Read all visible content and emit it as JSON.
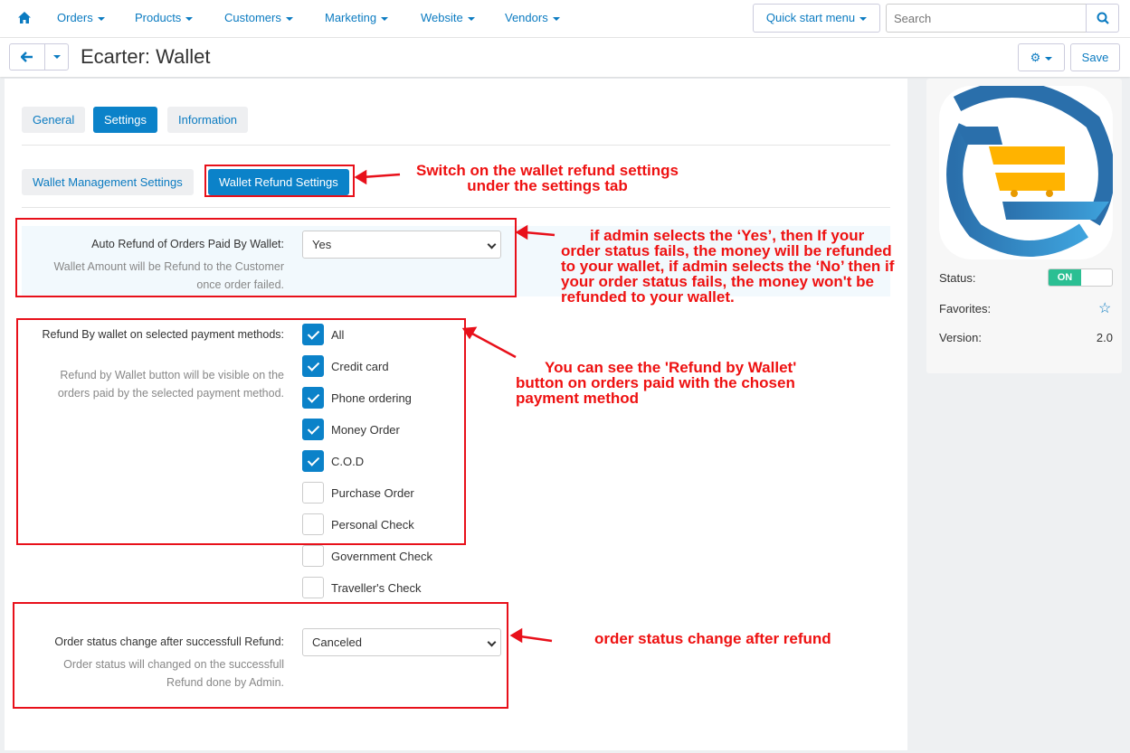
{
  "nav": {
    "items": [
      "Orders",
      "Products",
      "Customers",
      "Marketing",
      "Website",
      "Vendors"
    ],
    "quick_start": "Quick start menu",
    "search_placeholder": "Search"
  },
  "header": {
    "title": "Ecarter: Wallet",
    "save": "Save"
  },
  "tabs": [
    "General",
    "Settings",
    "Information"
  ],
  "subtabs": [
    "Wallet Management Settings",
    "Wallet Refund Settings"
  ],
  "fields": {
    "auto_refund": {
      "label": "Auto Refund of Orders Paid By Wallet:",
      "help": "Wallet Amount will be Refund to the Customer once order failed.",
      "value": "Yes"
    },
    "refund_methods": {
      "label": "Refund By wallet on selected payment methods:",
      "help": "Refund by Wallet button will be visible on the orders paid by the selected payment method.",
      "options": [
        {
          "label": "All",
          "checked": true
        },
        {
          "label": "Credit card",
          "checked": true
        },
        {
          "label": "Phone ordering",
          "checked": true
        },
        {
          "label": "Money Order",
          "checked": true
        },
        {
          "label": "C.O.D",
          "checked": true
        },
        {
          "label": "Purchase Order",
          "checked": false
        },
        {
          "label": "Personal Check",
          "checked": false
        },
        {
          "label": "Government Check",
          "checked": false
        },
        {
          "label": "Traveller's Check",
          "checked": false
        }
      ]
    },
    "status_change": {
      "label": "Order status change after successfull Refund:",
      "help": "Order status will changed on the successfull Refund done by Admin.",
      "value": "Canceled"
    }
  },
  "sidebar": {
    "status_label": "Status:",
    "status_value": "ON",
    "favorites_label": "Favorites:",
    "version_label": "Version:",
    "version_value": "2.0"
  },
  "annotations": {
    "a1": "Switch on the wallet refund settings under the settings tab",
    "a2": "if admin selects the ‘Yes’, then If your order status fails, the money will be refunded to your wallet, if admin selects the ‘No’ then if your order status fails, the money won't be refunded to your wallet.",
    "a3": "You can see the 'Refund by Wallet' button on orders paid with the chosen payment method",
    "a4": "order status change after refund"
  },
  "colors": {
    "accent": "#0b82c9",
    "annotation": "#e8101a",
    "toggle_on": "#2bbf93"
  }
}
